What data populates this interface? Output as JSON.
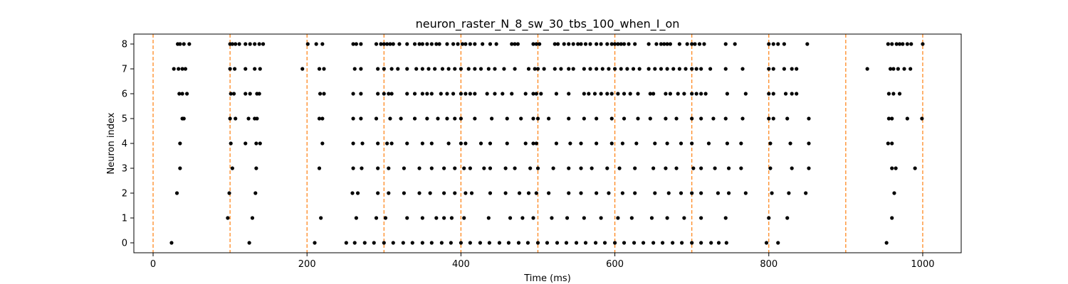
{
  "chart_data": {
    "type": "scatter",
    "title": "neuron_raster_N_8_sw_30_tbs_100_when_I_on",
    "xlabel": "Time (ms)",
    "ylabel": "Neuron index",
    "xlim": [
      -25,
      1050
    ],
    "ylim": [
      -0.4,
      8.4
    ],
    "xticks": [
      0,
      200,
      400,
      600,
      800,
      1000
    ],
    "yticks": [
      0,
      1,
      2,
      3,
      4,
      5,
      6,
      7,
      8
    ],
    "grid": false,
    "marker_color": "#000000",
    "vline_color": "#ff7f0e",
    "vlines": [
      0,
      100,
      200,
      300,
      400,
      500,
      600,
      700,
      800,
      900,
      1000
    ],
    "spikes": [
      {
        "neuron": 0,
        "times": [
          24,
          125,
          210,
          251,
          262,
          275,
          287,
          300,
          312,
          325,
          337,
          350,
          362,
          375,
          387,
          400,
          412,
          425,
          437,
          450,
          462,
          475,
          487,
          500,
          512,
          525,
          537,
          550,
          562,
          575,
          587,
          600,
          612,
          625,
          637,
          650,
          662,
          675,
          687,
          700,
          712,
          725,
          735,
          745,
          797,
          812,
          953
        ]
      },
      {
        "neuron": 1,
        "times": [
          97,
          129,
          218,
          264,
          290,
          302,
          330,
          350,
          368,
          378,
          388,
          404,
          436,
          464,
          480,
          494,
          518,
          538,
          560,
          582,
          604,
          622,
          648,
          668,
          690,
          712,
          744,
          800,
          824,
          960
        ]
      },
      {
        "neuron": 2,
        "times": [
          31,
          99,
          133,
          259,
          266,
          292,
          306,
          326,
          346,
          360,
          378,
          392,
          406,
          414,
          438,
          458,
          476,
          488,
          498,
          514,
          540,
          556,
          576,
          592,
          610,
          626,
          652,
          670,
          686,
          700,
          712,
          734,
          748,
          770,
          804,
          826,
          848,
          963
        ]
      },
      {
        "neuron": 3,
        "times": [
          35,
          103,
          134,
          216,
          260,
          271,
          292,
          306,
          326,
          346,
          362,
          378,
          392,
          404,
          412,
          430,
          438,
          458,
          470,
          490,
          500,
          520,
          540,
          556,
          570,
          590,
          606,
          626,
          650,
          666,
          680,
          702,
          712,
          730,
          748,
          764,
          802,
          830,
          852,
          960,
          965,
          990
        ]
      },
      {
        "neuron": 4,
        "times": [
          35,
          101,
          120,
          134,
          139,
          220,
          260,
          272,
          292,
          304,
          310,
          330,
          350,
          362,
          384,
          400,
          406,
          426,
          438,
          460,
          484,
          494,
          498,
          524,
          542,
          556,
          576,
          596,
          610,
          628,
          652,
          668,
          686,
          700,
          722,
          746,
          764,
          802,
          828,
          852,
          955,
          960
        ]
      },
      {
        "neuron": 5,
        "times": [
          38,
          40,
          100,
          107,
          124,
          132,
          135,
          216,
          220,
          260,
          270,
          290,
          308,
          322,
          340,
          356,
          370,
          382,
          392,
          400,
          418,
          440,
          460,
          478,
          494,
          500,
          514,
          540,
          560,
          576,
          596,
          612,
          630,
          646,
          666,
          680,
          700,
          712,
          728,
          744,
          766,
          800,
          806,
          824,
          852,
          956,
          960,
          980,
          999
        ]
      },
      {
        "neuron": 6,
        "times": [
          34,
          38,
          44,
          101,
          105,
          120,
          126,
          135,
          138,
          217,
          222,
          260,
          270,
          292,
          300,
          306,
          310,
          330,
          340,
          350,
          356,
          362,
          374,
          382,
          390,
          400,
          406,
          412,
          418,
          434,
          444,
          454,
          466,
          484,
          494,
          498,
          504,
          524,
          540,
          560,
          566,
          574,
          582,
          590,
          596,
          604,
          612,
          620,
          630,
          646,
          650,
          666,
          672,
          682,
          690,
          700,
          706,
          712,
          718,
          746,
          770,
          800,
          806,
          822,
          830,
          836,
          956,
          962,
          970
        ]
      },
      {
        "neuron": 7,
        "times": [
          27,
          33,
          38,
          42,
          100,
          106,
          120,
          132,
          139,
          194,
          216,
          222,
          262,
          270,
          292,
          300,
          310,
          318,
          330,
          342,
          350,
          358,
          366,
          376,
          384,
          392,
          400,
          410,
          418,
          426,
          436,
          444,
          456,
          470,
          488,
          496,
          500,
          508,
          522,
          530,
          540,
          546,
          560,
          568,
          576,
          584,
          592,
          600,
          608,
          616,
          624,
          632,
          644,
          652,
          660,
          668,
          676,
          684,
          692,
          700,
          706,
          712,
          724,
          744,
          766,
          800,
          806,
          820,
          830,
          836,
          928,
          958,
          962,
          968,
          976,
          984
        ]
      },
      {
        "neuron": 8,
        "times": [
          32,
          35,
          40,
          47,
          100,
          103,
          107,
          112,
          120,
          126,
          132,
          138,
          143,
          201,
          212,
          220,
          260,
          264,
          270,
          290,
          296,
          300,
          304,
          308,
          312,
          320,
          330,
          340,
          346,
          350,
          356,
          362,
          368,
          372,
          382,
          390,
          396,
          402,
          406,
          412,
          418,
          428,
          438,
          446,
          466,
          470,
          474,
          494,
          498,
          502,
          522,
          526,
          534,
          540,
          546,
          552,
          556,
          562,
          568,
          576,
          582,
          590,
          596,
          600,
          604,
          608,
          612,
          618,
          626,
          644,
          654,
          660,
          664,
          668,
          672,
          684,
          694,
          700,
          704,
          710,
          716,
          744,
          756,
          800,
          806,
          812,
          820,
          850,
          955,
          960,
          966,
          970,
          974,
          980,
          985,
          1000
        ]
      }
    ]
  }
}
